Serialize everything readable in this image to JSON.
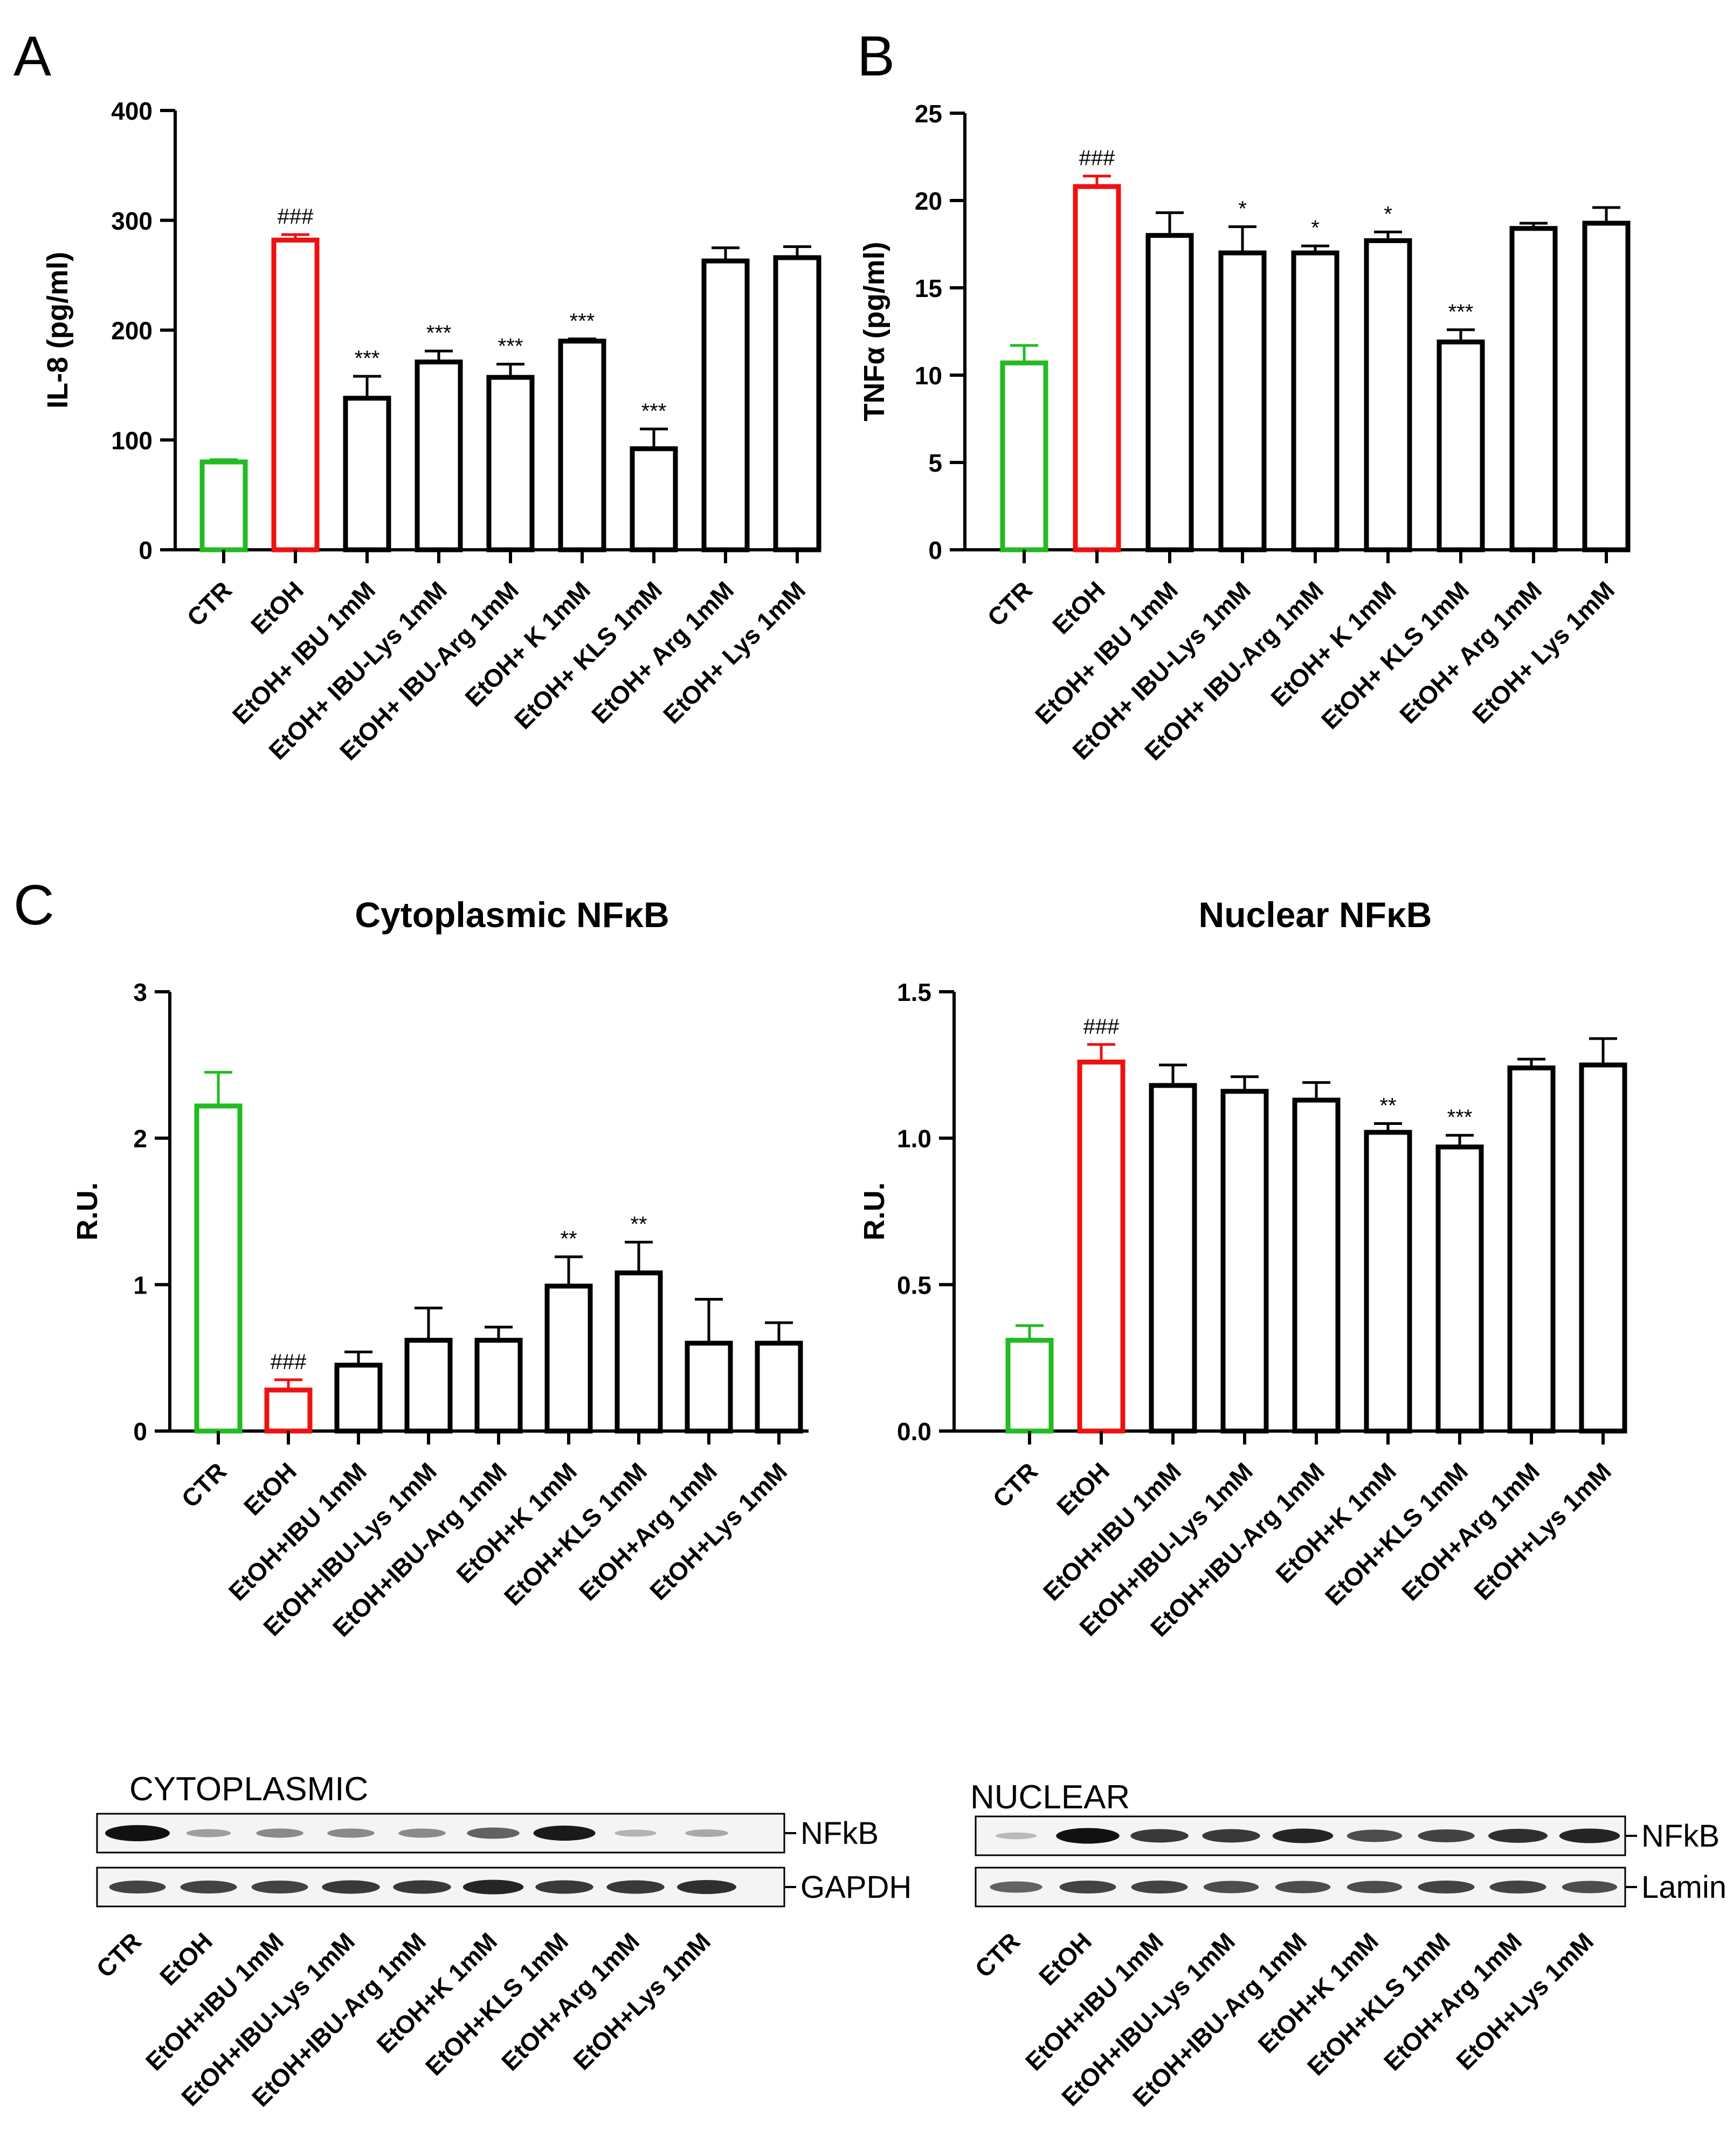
{
  "figure": {
    "panel_letters": [
      "A",
      "B",
      "C"
    ],
    "colors": {
      "ctr": "#22bb22",
      "etoh": "#ee1111",
      "treatment": "#000000"
    }
  },
  "chart_data": [
    {
      "id": "A",
      "type": "bar",
      "title": "",
      "ylabel": "IL-8 (pg/ml)",
      "xlabel": "",
      "ylim": [
        0,
        400
      ],
      "yticks": [
        "0",
        "100",
        "200",
        "300",
        "400"
      ],
      "categories": [
        "CTR",
        "EtOH",
        "EtOH+ IBU 1mM",
        "EtOH+ IBU-Lys 1mM",
        "EtOH+ IBU-Arg 1mM",
        "EtOH+ K 1mM",
        "EtOH+ KLS 1mM",
        "EtOH+ Arg 1mM",
        "EtOH+ Lys 1mM"
      ],
      "values": [
        80,
        282,
        138,
        171,
        157,
        190,
        92,
        263,
        266
      ],
      "errors": [
        2,
        5,
        20,
        10,
        12,
        2,
        18,
        12,
        10
      ],
      "annotations": [
        "",
        "###",
        "***",
        "***",
        "***",
        "***",
        "***",
        "",
        ""
      ],
      "bar_colors": [
        "ctr",
        "etoh",
        "treatment",
        "treatment",
        "treatment",
        "treatment",
        "treatment",
        "treatment",
        "treatment"
      ]
    },
    {
      "id": "B",
      "type": "bar",
      "title": "",
      "ylabel": "TNFα (pg/ml)",
      "xlabel": "",
      "ylim": [
        0,
        25
      ],
      "yticks": [
        "0",
        "5",
        "10",
        "15",
        "20",
        "25"
      ],
      "categories": [
        "CTR",
        "EtOH",
        "EtOH+ IBU 1mM",
        "EtOH+ IBU-Lys 1mM",
        "EtOH+ IBU-Arg 1mM",
        "EtOH+ K 1mM",
        "EtOH+ KLS 1mM",
        "EtOH+ Arg 1mM",
        "EtOH+ Lys 1mM"
      ],
      "values": [
        10.7,
        20.8,
        18.0,
        17.0,
        17.0,
        17.7,
        11.9,
        18.4,
        18.7
      ],
      "errors": [
        1.0,
        0.6,
        1.3,
        1.5,
        0.4,
        0.5,
        0.7,
        0.3,
        0.9
      ],
      "annotations": [
        "",
        "###",
        "",
        "*",
        "*",
        "*",
        "***",
        "",
        ""
      ],
      "bar_colors": [
        "ctr",
        "etoh",
        "treatment",
        "treatment",
        "treatment",
        "treatment",
        "treatment",
        "treatment",
        "treatment"
      ]
    },
    {
      "id": "C-cyto",
      "type": "bar",
      "title": "Cytoplasmic NFκB",
      "ylabel": "R.U.",
      "xlabel": "",
      "ylim": [
        0,
        3
      ],
      "yticks": [
        "0",
        "1",
        "2",
        "3"
      ],
      "categories": [
        "CTR",
        "EtOH",
        "EtOH+IBU 1mM",
        "EtOH+IBU-Lys 1mM",
        "EtOH+IBU-Arg 1mM",
        "EtOH+K 1mM",
        "EtOH+KLS 1mM",
        "EtOH+Arg 1mM",
        "EtOH+Lys 1mM"
      ],
      "values": [
        2.22,
        0.28,
        0.45,
        0.62,
        0.62,
        0.99,
        1.08,
        0.6,
        0.6
      ],
      "errors": [
        0.23,
        0.07,
        0.09,
        0.22,
        0.09,
        0.2,
        0.21,
        0.3,
        0.14
      ],
      "annotations": [
        "",
        "###",
        "",
        "",
        "",
        "**",
        "**",
        "",
        ""
      ],
      "bar_colors": [
        "ctr",
        "etoh",
        "treatment",
        "treatment",
        "treatment",
        "treatment",
        "treatment",
        "treatment",
        "treatment"
      ]
    },
    {
      "id": "C-nuc",
      "type": "bar",
      "title": "Nuclear NFκB",
      "ylabel": "R.U.",
      "xlabel": "",
      "ylim": [
        0,
        1.5
      ],
      "yticks": [
        "0.0",
        "0.5",
        "1.0",
        "1.5"
      ],
      "categories": [
        "CTR",
        "EtOH",
        "EtOH+IBU 1mM",
        "EtOH+IBU-Lys 1mM",
        "EtOH+IBU-Arg 1mM",
        "EtOH+K 1mM",
        "EtOH+KLS 1mM",
        "EtOH+Arg 1mM",
        "EtOH+Lys 1mM"
      ],
      "values": [
        0.31,
        1.26,
        1.18,
        1.16,
        1.13,
        1.02,
        0.97,
        1.24,
        1.25
      ],
      "errors": [
        0.05,
        0.06,
        0.07,
        0.05,
        0.06,
        0.03,
        0.04,
        0.03,
        0.09
      ],
      "annotations": [
        "",
        "###",
        "",
        "",
        "",
        "**",
        "***",
        "",
        ""
      ],
      "bar_colors": [
        "ctr",
        "etoh",
        "treatment",
        "treatment",
        "treatment",
        "treatment",
        "treatment",
        "treatment",
        "treatment"
      ]
    }
  ],
  "blots": [
    {
      "title": "CYTOPLASMIC",
      "rows": [
        {
          "label": "NFkB",
          "intensities": [
            1.0,
            0.25,
            0.35,
            0.35,
            0.35,
            0.55,
            0.9,
            0.15,
            0.2
          ]
        },
        {
          "label": "GAPDH",
          "intensities": [
            0.7,
            0.7,
            0.7,
            0.75,
            0.75,
            0.85,
            0.75,
            0.75,
            0.8
          ]
        }
      ],
      "lanes": [
        "CTR",
        "EtOH",
        "EtOH+IBU 1mM",
        "EtOH+IBU-Lys 1mM",
        "EtOH+IBU-Arg 1mM",
        "EtOH+K 1mM",
        "EtOH+KLS 1mM",
        "EtOH+Arg 1mM",
        "EtOH+Lys 1mM"
      ]
    },
    {
      "title": "NUCLEAR",
      "rows": [
        {
          "label": "NFkB",
          "intensities": [
            0.12,
            0.95,
            0.75,
            0.75,
            0.85,
            0.65,
            0.7,
            0.8,
            0.85
          ]
        },
        {
          "label": "Lamin",
          "intensities": [
            0.55,
            0.7,
            0.7,
            0.65,
            0.65,
            0.65,
            0.7,
            0.7,
            0.65
          ]
        }
      ],
      "lanes": [
        "CTR",
        "EtOH",
        "EtOH+IBU 1mM",
        "EtOH+IBU-Lys 1mM",
        "EtOH+IBU-Arg 1mM",
        "EtOH+K 1mM",
        "EtOH+KLS 1mM",
        "EtOH+Arg 1mM",
        "EtOH+Lys 1mM"
      ]
    }
  ]
}
